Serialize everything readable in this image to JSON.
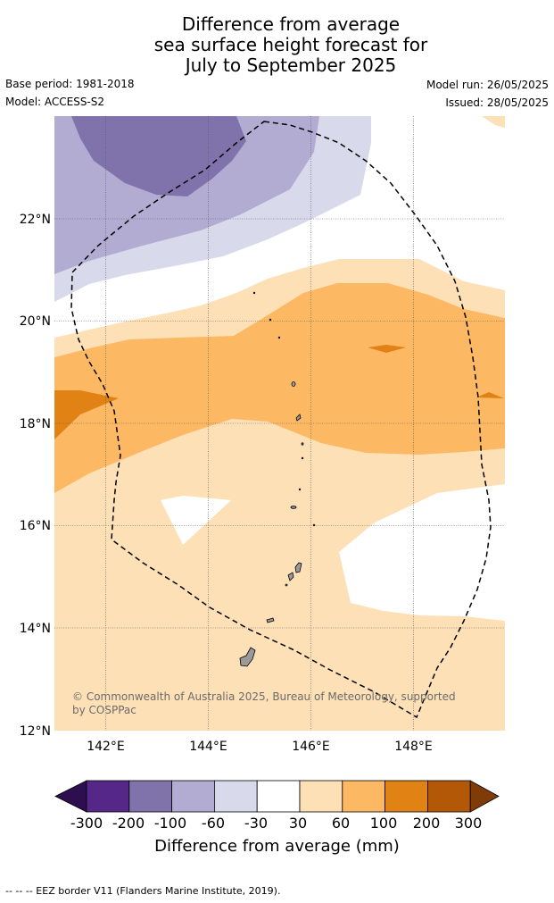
{
  "title": {
    "line1": "Difference from average",
    "line2": "sea surface height forecast for",
    "line3": "July to September 2025"
  },
  "meta": {
    "base_period": "Base period: 1981-2018",
    "model": "Model: ACCESS-S2",
    "model_run": "Model run: 26/05/2025",
    "issued": "Issued: 28/05/2025"
  },
  "map": {
    "lon_range": [
      141,
      149.8
    ],
    "lat_range": [
      12,
      24
    ],
    "lat_ticks": [
      "12°N",
      "14°N",
      "16°N",
      "18°N",
      "20°N",
      "22°N"
    ],
    "lon_ticks": [
      "142°E",
      "144°E",
      "146°E",
      "148°E"
    ],
    "attribution": "© Commonwealth of Australia 2025, Bureau of Meteorology, supported",
    "attribution2": "by COSPPac"
  },
  "colorbar": {
    "label": "Difference from average (mm)",
    "ticks": [
      "-300",
      "-200",
      "-100",
      "-60",
      "-30",
      "30",
      "60",
      "100",
      "200",
      "300"
    ],
    "colors": [
      "#2d0e4f",
      "#542788",
      "#8073ac",
      "#b2abd2",
      "#d8daeb",
      "#ffffff",
      "#fee0b6",
      "#fdb863",
      "#e08214",
      "#b35806",
      "#7f3b08"
    ]
  },
  "footnote": "--  --  -- EEZ border V11 (Flanders Marine Institute, 2019)."
}
